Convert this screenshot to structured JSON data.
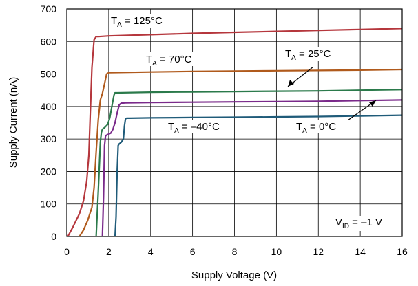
{
  "chart_data": {
    "type": "line",
    "xlabel": "Supply Voltage (V)",
    "ylabel": "Supply Current (nA)",
    "xlim": [
      0,
      16
    ],
    "ylim": [
      0,
      700
    ],
    "xticks": [
      0,
      2,
      4,
      6,
      8,
      10,
      12,
      14,
      16
    ],
    "yticks": [
      0,
      100,
      200,
      300,
      400,
      500,
      600,
      700
    ],
    "grid": true,
    "series": [
      {
        "name": "TA = 125°C",
        "color": "#b5363c",
        "x": [
          0.05,
          0.3,
          0.6,
          0.8,
          0.95,
          1.05,
          1.12,
          1.2,
          1.3,
          1.4,
          1.5,
          2.0,
          4.0,
          6.0,
          8.0,
          10.0,
          12.0,
          14.0,
          16.0
        ],
        "y": [
          0,
          30,
          70,
          110,
          170,
          250,
          380,
          520,
          605,
          615,
          615,
          617,
          621,
          625,
          628,
          631,
          634,
          637,
          640
        ]
      },
      {
        "name": "TA = 70°C",
        "color": "#b05a1c",
        "x": [
          0.6,
          0.8,
          1.0,
          1.2,
          1.3,
          1.4,
          1.5,
          1.6,
          1.7,
          1.8,
          1.9,
          2.0,
          4.0,
          6.0,
          8.0,
          10.0,
          12.0,
          14.0,
          16.0
        ],
        "y": [
          0,
          20,
          50,
          90,
          150,
          260,
          360,
          420,
          440,
          470,
          500,
          504,
          506,
          508,
          509,
          510,
          511,
          512,
          514
        ]
      },
      {
        "name": "TA = 25°C",
        "color": "#2b7a4b",
        "x": [
          1.4,
          1.5,
          1.6,
          1.65,
          1.7,
          1.8,
          1.95,
          2.05,
          2.15,
          2.25,
          2.3,
          2.4,
          4.0,
          6.0,
          8.0,
          10.0,
          12.0,
          14.0,
          16.0
        ],
        "y": [
          0,
          140,
          290,
          320,
          330,
          335,
          345,
          365,
          400,
          435,
          442,
          442,
          444,
          445,
          446,
          447,
          448,
          450,
          452
        ]
      },
      {
        "name": "TA = –40°C",
        "color": "#1f5b79",
        "x": [
          2.3,
          2.35,
          2.4,
          2.45,
          2.5,
          2.6,
          2.7,
          2.75,
          2.8,
          2.85,
          3.0,
          4.0,
          6.0,
          8.0,
          10.0,
          12.0,
          14.0,
          16.0
        ],
        "y": [
          0,
          60,
          200,
          280,
          285,
          290,
          300,
          340,
          362,
          364,
          364,
          365,
          366,
          367,
          368,
          369,
          371,
          373
        ]
      },
      {
        "name": "TA = 0°C",
        "color": "#7a2a8a",
        "x": [
          1.7,
          1.75,
          1.8,
          1.85,
          1.9,
          2.0,
          2.1,
          2.2,
          2.3,
          2.4,
          2.5,
          2.6,
          2.8,
          4.0,
          6.0,
          8.0,
          10.0,
          12.0,
          14.0,
          16.0
        ],
        "y": [
          0,
          120,
          280,
          310,
          312,
          315,
          318,
          330,
          350,
          380,
          405,
          410,
          411,
          412,
          413,
          414,
          415,
          416,
          418,
          420
        ]
      }
    ],
    "annotations": [
      {
        "id": "t125",
        "main": "T",
        "sub": "A",
        "rest": " = 125°C"
      },
      {
        "id": "t70",
        "main": "T",
        "sub": "A",
        "rest": " = 70°C"
      },
      {
        "id": "t25",
        "main": "T",
        "sub": "A",
        "rest": " = 25°C"
      },
      {
        "id": "tm40",
        "main": "T",
        "sub": "A",
        "rest": " = –40°C"
      },
      {
        "id": "t0",
        "main": "T",
        "sub": "A",
        "rest": " = 0°C"
      },
      {
        "id": "vid",
        "main": "V",
        "sub": "ID",
        "rest": " = –1 V"
      }
    ]
  }
}
